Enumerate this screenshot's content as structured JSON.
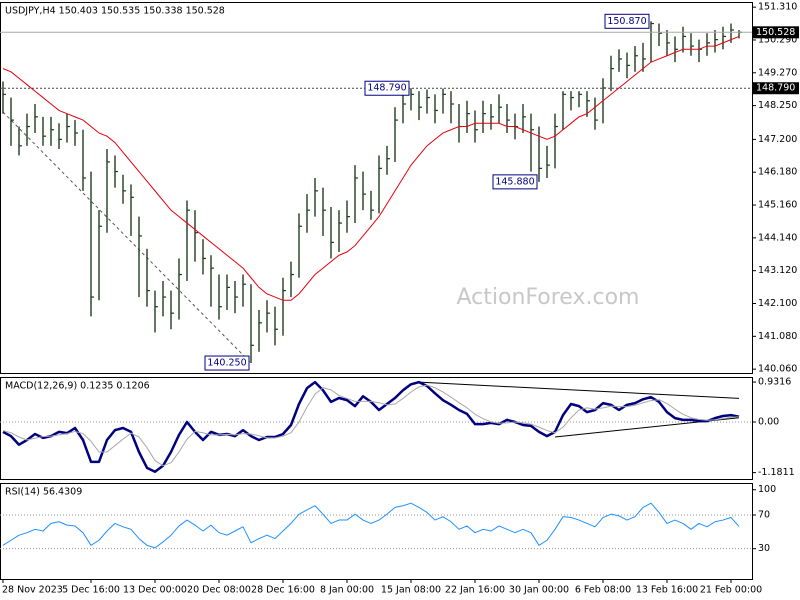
{
  "chart_data": [
    {
      "type": "ohlc",
      "title": "USDJPY,H4  150.403 150.535 150.338 150.528",
      "watermark": "ActionForex.com",
      "categories": [
        "28 Nov 2023",
        null,
        null,
        null,
        null,
        null,
        null,
        null,
        null,
        null,
        null,
        "5 Dec 16:00",
        null,
        null,
        null,
        null,
        null,
        null,
        null,
        "13 Dec 00:00",
        null,
        null,
        null,
        null,
        null,
        null,
        null,
        "20 Dec 08:00",
        null,
        null,
        null,
        null,
        null,
        null,
        null,
        "28 Dec 16:00",
        null,
        null,
        null,
        null,
        null,
        null,
        null,
        "8 Jan 00:00",
        null,
        null,
        null,
        null,
        null,
        null,
        null,
        "15 Jan 08:00",
        null,
        null,
        null,
        null,
        null,
        null,
        null,
        "22 Jan 16:00",
        null,
        null,
        null,
        null,
        null,
        null,
        null,
        "30 Jan 00:00",
        null,
        null,
        null,
        null,
        null,
        null,
        null,
        "6 Feb 08:00",
        null,
        null,
        null,
        null,
        null,
        null,
        null,
        "13 Feb 16:00",
        null,
        null,
        null,
        null,
        null,
        null,
        null,
        "21 Feb 00:00",
        null
      ],
      "high": [
        149.0,
        148.5,
        147.6,
        148.0,
        148.3,
        147.9,
        147.9,
        147.7,
        148.0,
        147.8,
        147.5,
        146.2,
        145.0,
        146.9,
        146.7,
        146.1,
        145.8,
        144.8,
        143.8,
        142.5,
        142.8,
        142.5,
        143.5,
        145.3,
        145.0,
        144.1,
        143.6,
        143.0,
        143.0,
        142.8,
        143.0,
        142.7,
        141.9,
        142.2,
        142.0,
        142.9,
        143.4,
        144.9,
        145.5,
        146.0,
        145.7,
        145.1,
        145.0,
        145.3,
        146.4,
        146.2,
        145.6,
        146.7,
        147.0,
        148.2,
        148.7,
        148.79,
        148.7,
        148.75,
        148.6,
        148.78,
        148.7,
        148.3,
        148.4,
        148.1,
        148.4,
        148.3,
        148.6,
        148.3,
        148.0,
        148.3,
        148.0,
        147.6,
        147.0,
        148.0,
        148.7,
        148.7,
        148.7,
        148.7,
        148.5,
        149.1,
        149.8,
        150.0,
        149.9,
        150.1,
        150.2,
        150.87,
        150.8,
        150.6,
        150.4,
        150.7,
        150.5,
        150.3,
        150.5,
        150.6,
        150.7,
        150.8,
        150.6
      ],
      "low": [
        148.0,
        147.0,
        146.7,
        147.0,
        147.4,
        147.0,
        147.0,
        146.9,
        147.1,
        147.0,
        145.6,
        141.7,
        142.2,
        144.3,
        145.7,
        145.2,
        144.2,
        142.3,
        142.0,
        141.2,
        141.7,
        141.3,
        141.6,
        142.8,
        143.4,
        143.0,
        142.0,
        141.6,
        141.9,
        141.8,
        142.0,
        140.25,
        140.6,
        141.2,
        140.8,
        141.1,
        142.3,
        142.9,
        144.3,
        144.8,
        144.2,
        143.5,
        143.7,
        144.3,
        144.6,
        145.0,
        144.7,
        144.9,
        146.1,
        146.5,
        147.7,
        148.1,
        147.8,
        148.0,
        147.7,
        148.0,
        147.7,
        147.1,
        147.4,
        147.1,
        147.4,
        147.5,
        147.7,
        147.4,
        147.2,
        147.4,
        146.2,
        145.88,
        146.0,
        146.3,
        147.5,
        148.1,
        148.2,
        147.9,
        147.5,
        147.7,
        148.7,
        149.3,
        149.1,
        149.3,
        149.3,
        149.6,
        150.1,
        149.8,
        149.6,
        149.9,
        149.8,
        149.6,
        149.8,
        149.9,
        150.0,
        150.2,
        150.338
      ],
      "close": [
        148.6,
        147.8,
        147.0,
        147.6,
        147.9,
        147.3,
        147.5,
        147.2,
        147.6,
        147.4,
        146.0,
        142.3,
        144.5,
        146.5,
        146.2,
        145.6,
        145.4,
        144.2,
        142.5,
        142.0,
        142.3,
        141.8,
        143.0,
        145.0,
        144.3,
        143.5,
        143.2,
        142.0,
        142.6,
        142.3,
        142.7,
        140.8,
        141.5,
        141.8,
        141.3,
        142.5,
        143.0,
        144.5,
        145.0,
        145.6,
        145.0,
        144.0,
        144.6,
        144.8,
        146.0,
        145.5,
        145.0,
        146.3,
        146.6,
        147.8,
        148.3,
        148.6,
        148.2,
        148.5,
        148.1,
        148.6,
        148.3,
        147.6,
        148.0,
        147.5,
        148.0,
        147.9,
        148.2,
        147.8,
        147.6,
        147.9,
        147.5,
        146.3,
        146.4,
        147.6,
        148.6,
        148.5,
        148.6,
        148.4,
        147.8,
        148.8,
        149.4,
        149.7,
        149.5,
        149.8,
        149.7,
        150.8,
        150.5,
        150.2,
        150.0,
        150.4,
        150.1,
        150.0,
        150.2,
        150.3,
        150.4,
        150.6,
        150.528
      ],
      "color": "#1e3b1e",
      "moving_average": {
        "color": "#e8000b",
        "values": [
          149.4,
          149.3,
          149.1,
          148.9,
          148.7,
          148.5,
          148.3,
          148.1,
          148.0,
          147.9,
          147.8,
          147.6,
          147.4,
          147.3,
          147.1,
          146.8,
          146.5,
          146.2,
          145.9,
          145.6,
          145.3,
          145.0,
          144.8,
          144.6,
          144.4,
          144.2,
          144.0,
          143.8,
          143.6,
          143.4,
          143.2,
          142.9,
          142.6,
          142.4,
          142.3,
          142.2,
          142.2,
          142.4,
          142.7,
          143.0,
          143.2,
          143.4,
          143.6,
          143.7,
          143.9,
          144.2,
          144.5,
          144.8,
          145.2,
          145.6,
          146.0,
          146.4,
          146.7,
          147.0,
          147.2,
          147.4,
          147.5,
          147.6,
          147.6,
          147.7,
          147.7,
          147.7,
          147.7,
          147.6,
          147.6,
          147.5,
          147.4,
          147.3,
          147.2,
          147.3,
          147.5,
          147.7,
          147.9,
          148.0,
          148.2,
          148.4,
          148.6,
          148.8,
          149.0,
          149.2,
          149.4,
          149.6,
          149.7,
          149.8,
          149.9,
          150.0,
          150.0,
          150.0,
          150.1,
          150.1,
          150.2,
          150.3,
          150.4
        ]
      },
      "ylim": [
        139.94,
        151.47
      ],
      "yticks": [
        {
          "value": 151.31,
          "label": "151.310"
        },
        {
          "value": 150.29,
          "label": "150.290"
        },
        {
          "value": 149.27,
          "label": "149.270"
        },
        {
          "value": 148.25,
          "label": "148.250"
        },
        {
          "value": 147.2,
          "label": "147.200"
        },
        {
          "value": 146.18,
          "label": "146.180"
        },
        {
          "value": 145.16,
          "label": "145.160"
        },
        {
          "value": 144.14,
          "label": "144.140"
        },
        {
          "value": 143.12,
          "label": "143.120"
        },
        {
          "value": 142.1,
          "label": "142.100"
        },
        {
          "value": 141.08,
          "label": "141.080"
        },
        {
          "value": 140.06,
          "label": "140.060"
        }
      ],
      "level_line": {
        "value": 148.79,
        "label": "148.790"
      },
      "last_price": {
        "value": 150.528,
        "label": "150.528"
      },
      "annotations": [
        {
          "bar": 81,
          "value": 150.87,
          "label": "150.870"
        },
        {
          "bar": 51,
          "value": 148.79,
          "label": "148.790"
        },
        {
          "bar": 31,
          "value": 140.25,
          "label": "140.250"
        },
        {
          "bar": 67,
          "value": 145.88,
          "label": "145.880"
        }
      ],
      "trend_lines": [
        {
          "x": [
            0,
            31
          ],
          "values": [
            148.05,
            140.25
          ],
          "color": "#555555",
          "dashed": true
        }
      ]
    },
    {
      "type": "line",
      "title": "MACD(12,26,9) 0.1235 0.1206",
      "series": [
        {
          "color": "#000080",
          "width": 2.5,
          "values": [
            -0.23,
            -0.33,
            -0.53,
            -0.42,
            -0.28,
            -0.37,
            -0.33,
            -0.23,
            -0.26,
            -0.14,
            -0.42,
            -0.93,
            -0.93,
            -0.42,
            -0.19,
            -0.14,
            -0.23,
            -0.7,
            -1.07,
            -1.16,
            -1.02,
            -0.7,
            -0.3,
            0.0,
            -0.23,
            -0.42,
            -0.23,
            -0.3,
            -0.28,
            -0.33,
            -0.19,
            -0.33,
            -0.42,
            -0.35,
            -0.35,
            -0.28,
            -0.07,
            0.42,
            0.79,
            0.93,
            0.74,
            0.47,
            0.56,
            0.51,
            0.37,
            0.6,
            0.47,
            0.28,
            0.42,
            0.56,
            0.74,
            0.88,
            0.93,
            0.84,
            0.67,
            0.51,
            0.4,
            0.28,
            0.19,
            -0.05,
            -0.05,
            -0.02,
            -0.05,
            0.05,
            0.0,
            -0.07,
            -0.09,
            -0.23,
            -0.33,
            -0.23,
            0.16,
            0.42,
            0.37,
            0.23,
            0.28,
            0.44,
            0.4,
            0.28,
            0.4,
            0.44,
            0.53,
            0.58,
            0.47,
            0.23,
            0.09,
            0.05,
            0.05,
            0.02,
            0.02,
            0.09,
            0.14,
            0.16,
            0.1235
          ]
        },
        {
          "color": "#a8a8a8",
          "width": 1,
          "values": [
            -0.2,
            -0.25,
            -0.35,
            -0.42,
            -0.38,
            -0.34,
            -0.33,
            -0.3,
            -0.27,
            -0.22,
            -0.27,
            -0.45,
            -0.7,
            -0.7,
            -0.55,
            -0.4,
            -0.26,
            -0.35,
            -0.6,
            -0.9,
            -1.02,
            -0.95,
            -0.7,
            -0.4,
            -0.22,
            -0.25,
            -0.3,
            -0.3,
            -0.29,
            -0.3,
            -0.27,
            -0.28,
            -0.32,
            -0.37,
            -0.37,
            -0.33,
            -0.25,
            0.0,
            0.35,
            0.65,
            0.8,
            0.75,
            0.62,
            0.55,
            0.48,
            0.48,
            0.48,
            0.45,
            0.4,
            0.42,
            0.55,
            0.7,
            0.82,
            0.86,
            0.8,
            0.7,
            0.58,
            0.45,
            0.33,
            0.18,
            0.08,
            0.0,
            -0.03,
            -0.02,
            0.0,
            -0.02,
            -0.05,
            -0.12,
            -0.2,
            -0.25,
            -0.12,
            0.1,
            0.28,
            0.33,
            0.3,
            0.33,
            0.37,
            0.36,
            0.36,
            0.39,
            0.45,
            0.5,
            0.52,
            0.43,
            0.3,
            0.18,
            0.1,
            0.06,
            0.04,
            0.05,
            0.08,
            0.11,
            0.1206
          ]
        }
      ],
      "ylim": [
        -1.33,
        1.05
      ],
      "yticks": [
        0.9316,
        {
          "value": 0,
          "label": "0.00"
        },
        -1.1811
      ],
      "level_lines": [
        0
      ],
      "trend_lines": [
        {
          "x": [
            52,
            92
          ],
          "values": [
            0.93,
            0.55
          ],
          "color": "#000000",
          "dashed": false
        },
        {
          "x": [
            69,
            92
          ],
          "values": [
            -0.35,
            0.1
          ],
          "color": "#000000",
          "dashed": false
        }
      ]
    },
    {
      "type": "line",
      "title": "RSI(14) 56.4309",
      "series": [
        {
          "color": "#1e90ff",
          "width": 1,
          "values": [
            34,
            40,
            46,
            49,
            53,
            51,
            60,
            62,
            58,
            57,
            49,
            34,
            40,
            51,
            60,
            56,
            53,
            42,
            34,
            31,
            38,
            46,
            57,
            64,
            58,
            51,
            58,
            49,
            46,
            51,
            56,
            37,
            42,
            46,
            42,
            51,
            60,
            71,
            76,
            81,
            71,
            60,
            64,
            64,
            71,
            64,
            60,
            64,
            71,
            79,
            81,
            84,
            79,
            73,
            64,
            68,
            62,
            53,
            57,
            49,
            53,
            51,
            57,
            53,
            49,
            53,
            49,
            34,
            40,
            53,
            68,
            67,
            64,
            60,
            56,
            67,
            71,
            69,
            64,
            68,
            79,
            84,
            73,
            60,
            64,
            60,
            53,
            60,
            56,
            62,
            64,
            67,
            56.4309
          ]
        }
      ],
      "ylim": [
        -6,
        108
      ],
      "yticks": [
        100,
        70,
        30
      ],
      "level_lines": [
        70,
        30
      ]
    }
  ]
}
